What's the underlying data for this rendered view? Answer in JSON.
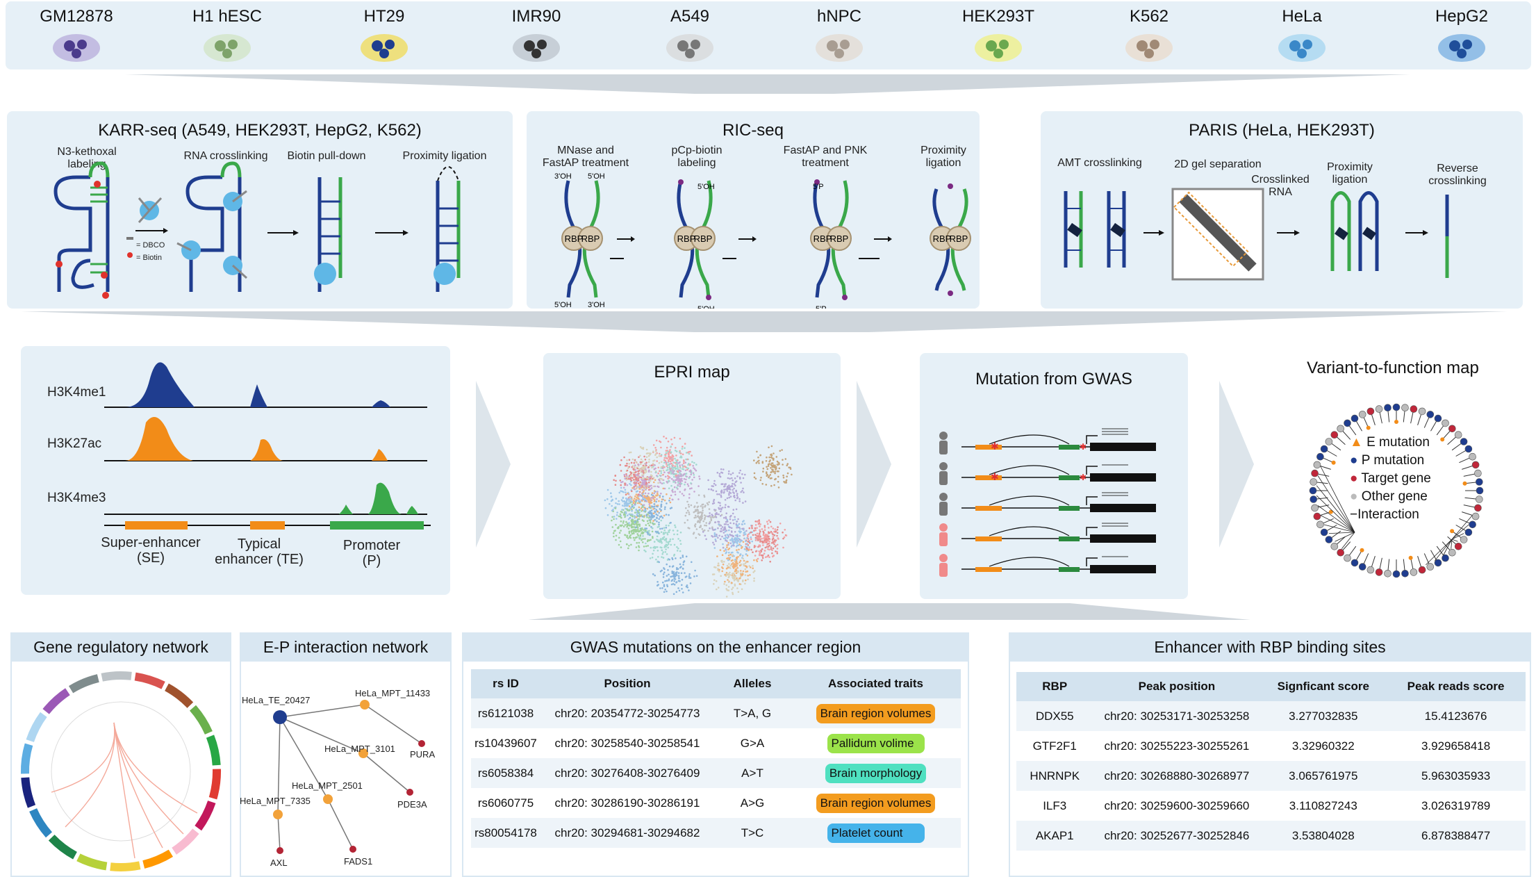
{
  "cell_lines": [
    "GM12878",
    "H1 hESC",
    "HT29",
    "IMR90",
    "A549",
    "hNPC",
    "HEK293T",
    "K562",
    "HeLa",
    "HepG2"
  ],
  "karr": {
    "title": "KARR-seq (A549, HEK293T, HepG2, K562)",
    "steps": [
      "N3-kethoxal labeling",
      "RNA crosslinking",
      "Biotin pull-down",
      "Proximity ligation"
    ],
    "legend": [
      "= DBCO",
      "= Biotin"
    ]
  },
  "ric": {
    "title": "RIC-seq",
    "steps": [
      "MNase and FastAP treatment",
      "pCp-biotin labeling",
      "FastAP and PNK treatment",
      "Proximity ligation"
    ],
    "rbp": "RBP",
    "ends": [
      "3'OH",
      "5'OH",
      "5'OH",
      "3'OH",
      "5'P"
    ]
  },
  "paris": {
    "title": "PARIS (HeLa, HEK293T)",
    "steps": [
      "AMT crosslinking",
      "2D gel separation",
      "Proximity ligation",
      "Reverse crosslinking"
    ],
    "crosslinked": "Crosslinked RNA"
  },
  "histone": {
    "marks": [
      "H3K4me1",
      "H3K27ac",
      "H3K4me3"
    ],
    "regions": [
      "Super-enhancer (SE)",
      "Typical enhancer (TE)",
      "Promoter (P)"
    ]
  },
  "epri": {
    "title": "EPRI map"
  },
  "gwas_panel": {
    "title": "Mutation from GWAS"
  },
  "v2f": {
    "title": "Variant-to-function map",
    "legend": [
      "E mutation",
      "P mutation",
      "Target gene",
      "Other gene",
      "Interaction"
    ]
  },
  "grn": {
    "title": "Gene regulatory network"
  },
  "epnet": {
    "title": "E-P interaction network",
    "nodes": [
      "HeLa_TE_20427",
      "HeLa_MPT_11433",
      "HeLa_MPT_3101",
      "HeLa_MPT_2501",
      "HeLa_MPT_7335",
      "PURA",
      "PDE3A",
      "FADS1",
      "AXL"
    ]
  },
  "gwas_table": {
    "title": "GWAS mutations on the enhancer region",
    "headers": [
      "rs ID",
      "Position",
      "Alleles",
      "Associated traits"
    ],
    "rows": [
      {
        "id": "rs6121038",
        "pos": "chr20: 20354772-30254773",
        "allele": "T>A, G",
        "trait": "Brain region volumes",
        "color": "#f39c1f"
      },
      {
        "id": "rs10439607",
        "pos": "chr20: 30258540-30258541",
        "allele": "G>A",
        "trait": "Pallidum volime",
        "color": "#9be34a"
      },
      {
        "id": "rs6058384",
        "pos": "chr20: 30276408-30276409",
        "allele": "A>T",
        "trait": "Brain morphology",
        "color": "#4fe0c0"
      },
      {
        "id": "rs6060775",
        "pos": "chr20: 30286190-30286191",
        "allele": "A>G",
        "trait": "Brain region volumes",
        "color": "#f39c1f"
      },
      {
        "id": "rs80054178",
        "pos": "chr20: 30294681-30294682",
        "allele": "T>C",
        "trait": "Platelet count",
        "color": "#45b3ea"
      }
    ]
  },
  "rbp_table": {
    "title": "Enhancer with RBP binding sites",
    "headers": [
      "RBP",
      "Peak position",
      "Signficant score",
      "Peak reads score"
    ],
    "rows": [
      {
        "rbp": "DDX55",
        "pos": "chr20: 30253171-30253258",
        "sig": "3.277032835",
        "reads": "15.4123676"
      },
      {
        "rbp": "GTF2F1",
        "pos": "chr20: 30255223-30255261",
        "sig": "3.32960322",
        "reads": "3.929658418"
      },
      {
        "rbp": "HNRNPK",
        "pos": "chr20: 30268880-30268977",
        "sig": "3.065761975",
        "reads": "5.963035933"
      },
      {
        "rbp": "ILF3",
        "pos": "chr20: 30259600-30259660",
        "sig": "3.110827243",
        "reads": "3.026319789"
      },
      {
        "rbp": "AKAP1",
        "pos": "chr20: 30252677-30252846",
        "sig": "3.53804028",
        "reads": "6.878388477"
      }
    ]
  },
  "colors": {
    "panel": "#e6f0f7",
    "blue": "#1f3d8f",
    "green": "#3aa84a",
    "orange": "#f28c18",
    "red": "#c0273a"
  }
}
